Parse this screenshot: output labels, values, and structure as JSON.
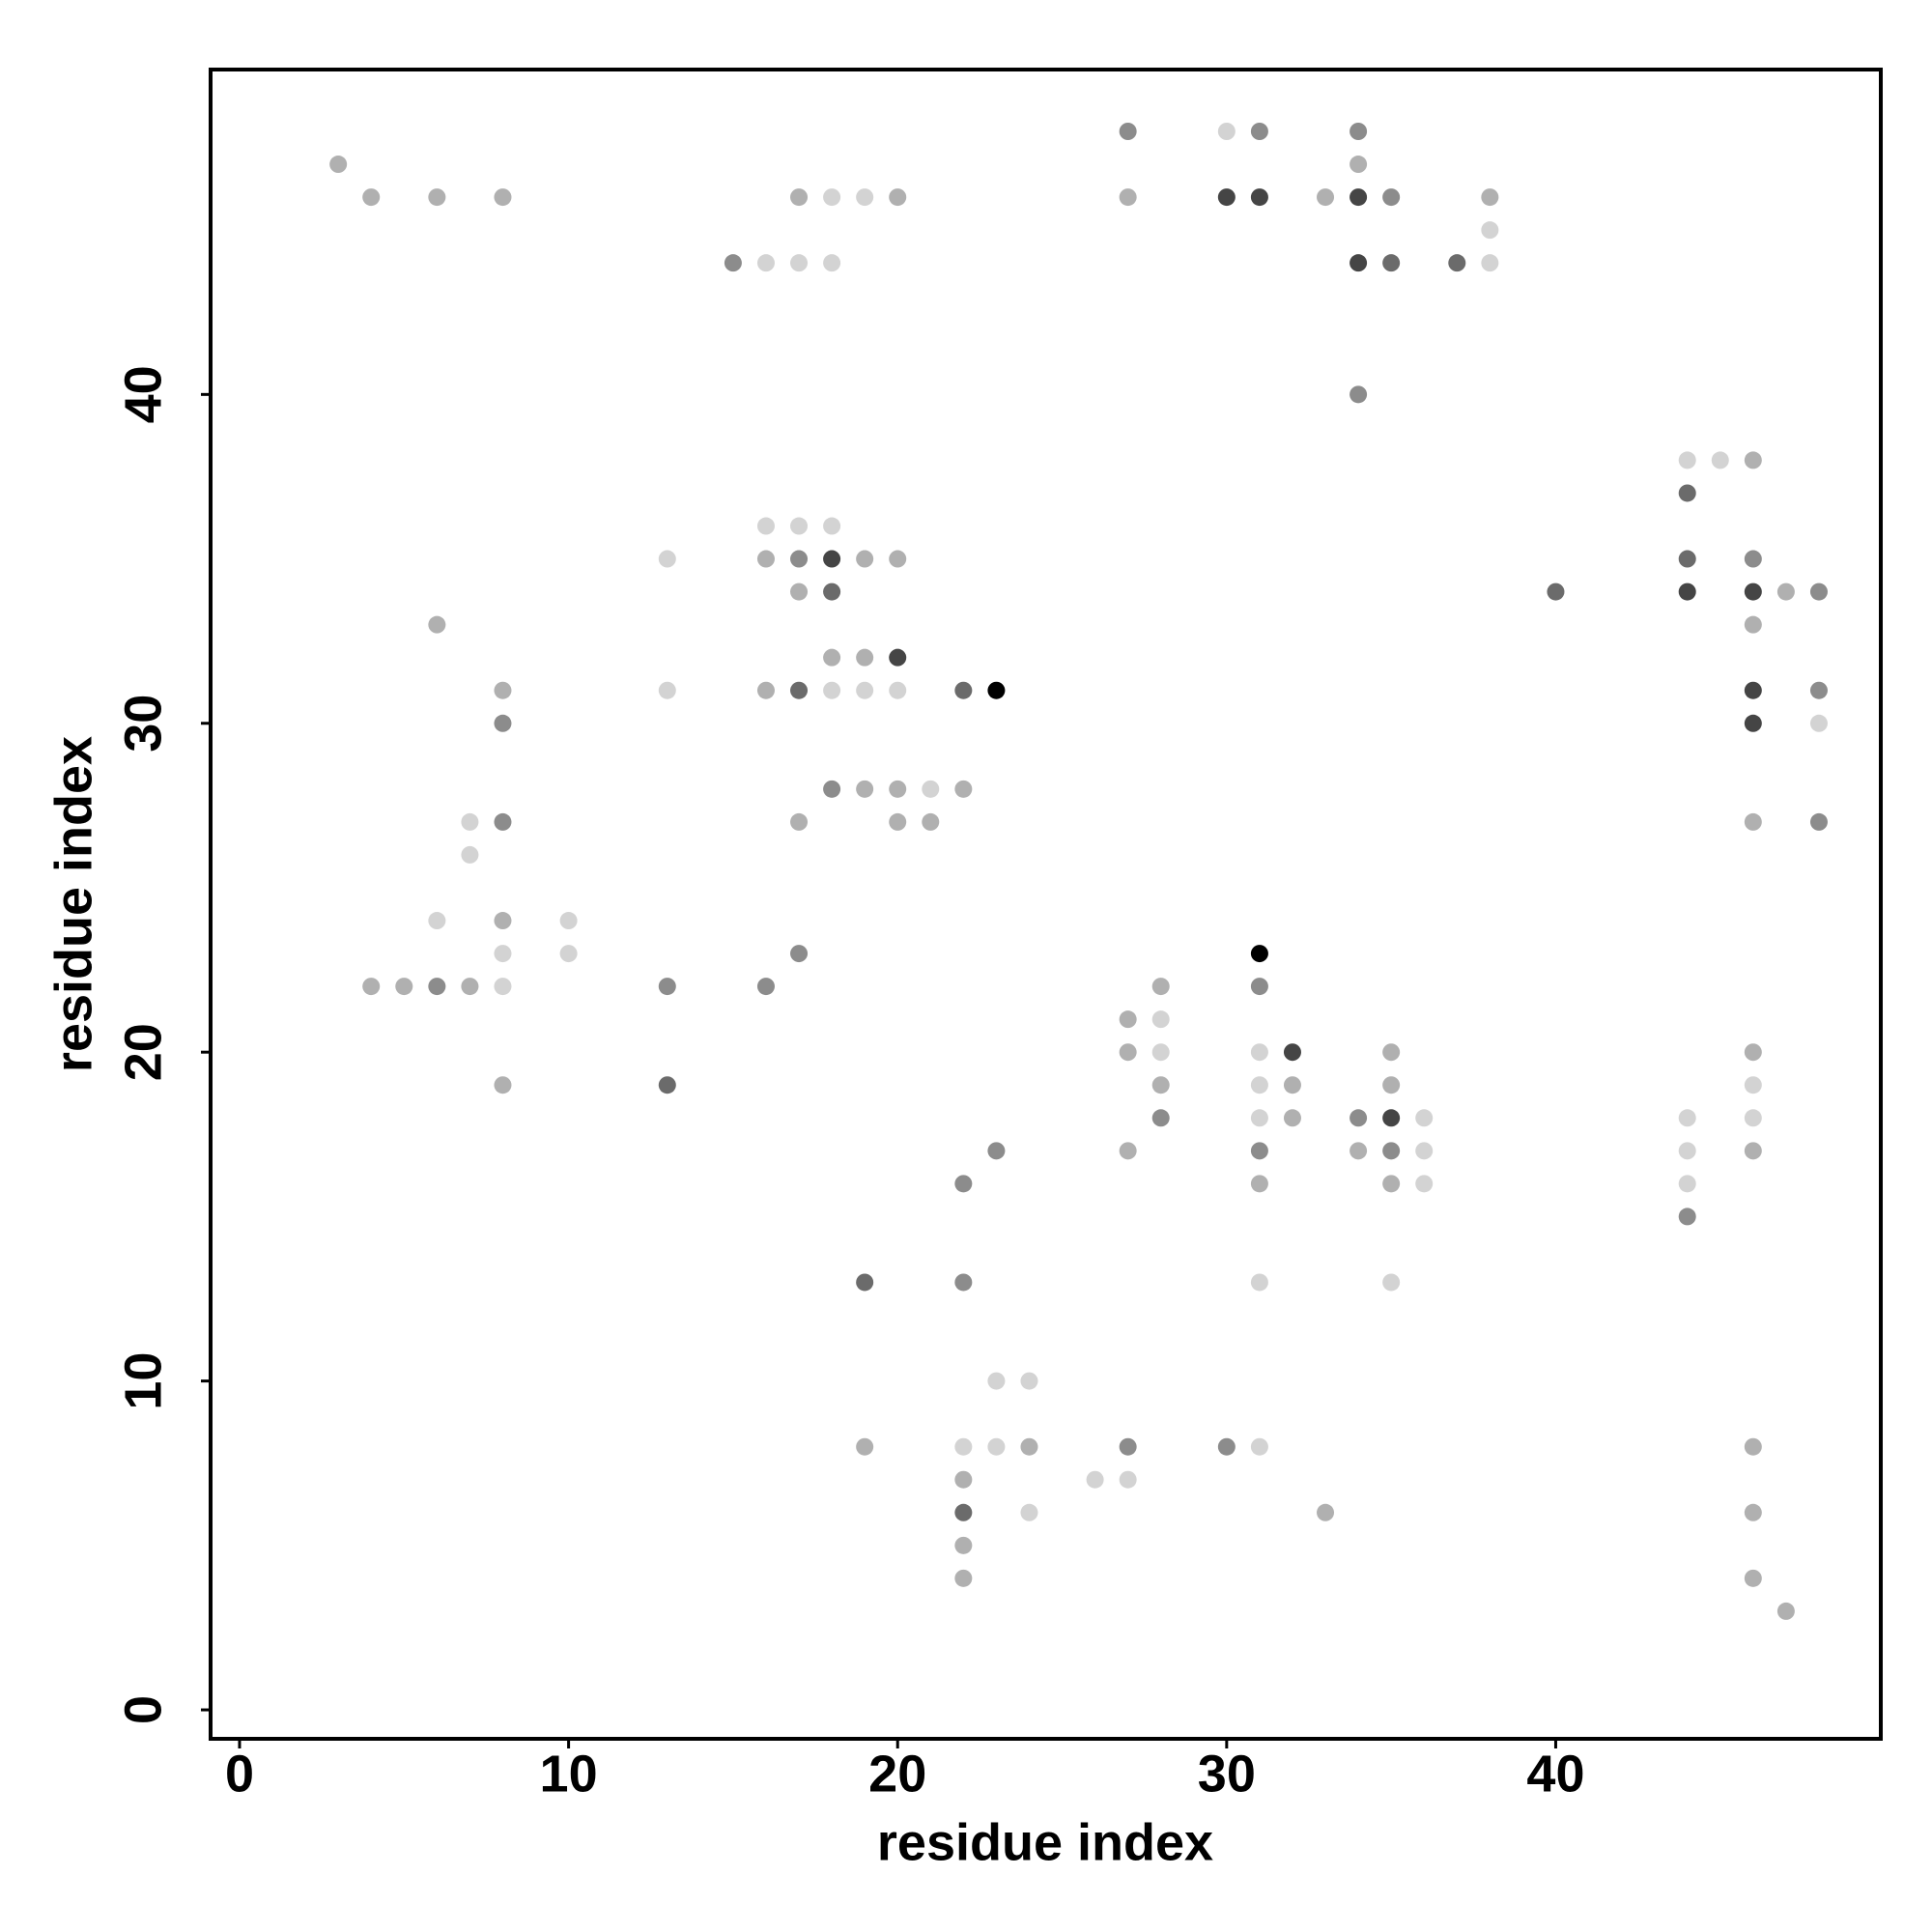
{
  "chart_data": {
    "type": "scatter",
    "xlabel": "residue index",
    "ylabel": "residue index",
    "xlim": [
      -0.88,
      49.88
    ],
    "ylim": [
      -0.88,
      49.88
    ],
    "xticks": [
      0,
      10,
      20,
      30,
      40
    ],
    "yticks": [
      0,
      10,
      20,
      30,
      40
    ],
    "x": [
      27,
      30,
      31,
      34,
      3,
      34,
      4,
      6,
      8,
      17,
      18,
      19,
      20,
      27,
      30,
      31,
      33,
      34,
      35,
      38,
      38,
      15,
      16,
      17,
      18,
      34,
      35,
      37,
      38,
      34,
      44,
      45,
      46,
      44,
      16,
      17,
      18,
      13,
      16,
      17,
      18,
      19,
      20,
      44,
      46,
      17,
      18,
      40,
      44,
      46,
      47,
      48,
      6,
      46,
      18,
      19,
      20,
      8,
      13,
      16,
      17,
      18,
      19,
      20,
      22,
      23,
      46,
      48,
      8,
      46,
      48,
      18,
      19,
      20,
      21,
      22,
      7,
      8,
      17,
      20,
      21,
      46,
      48,
      7,
      6,
      8,
      10,
      8,
      10,
      17,
      31,
      4,
      5,
      6,
      7,
      8,
      13,
      16,
      28,
      31,
      27,
      28,
      27,
      28,
      31,
      32,
      35,
      46,
      8,
      13,
      28,
      31,
      32,
      35,
      46,
      28,
      31,
      32,
      34,
      35,
      36,
      44,
      46,
      23,
      27,
      31,
      34,
      35,
      36,
      44,
      46,
      22,
      31,
      35,
      36,
      44,
      44,
      19,
      22,
      31,
      35,
      23,
      24,
      19,
      22,
      23,
      24,
      27,
      30,
      31,
      46,
      22,
      26,
      27,
      22,
      24,
      33,
      46,
      22,
      22,
      46,
      47
    ],
    "y": [
      48,
      48,
      48,
      48,
      47,
      47,
      46,
      46,
      46,
      46,
      46,
      46,
      46,
      46,
      46,
      46,
      46,
      46,
      46,
      46,
      45,
      44,
      44,
      44,
      44,
      44,
      44,
      44,
      44,
      40,
      38,
      38,
      38,
      37,
      36,
      36,
      36,
      35,
      35,
      35,
      35,
      35,
      35,
      35,
      35,
      34,
      34,
      34,
      34,
      34,
      34,
      34,
      33,
      33,
      32,
      32,
      32,
      31,
      31,
      31,
      31,
      31,
      31,
      31,
      31,
      31,
      31,
      31,
      30,
      30,
      30,
      28,
      28,
      28,
      28,
      28,
      27,
      27,
      27,
      27,
      27,
      27,
      27,
      26,
      24,
      24,
      24,
      23,
      23,
      23,
      23,
      22,
      22,
      22,
      22,
      22,
      22,
      22,
      22,
      22,
      21,
      21,
      20,
      20,
      20,
      20,
      20,
      20,
      19,
      19,
      19,
      19,
      19,
      19,
      19,
      18,
      18,
      18,
      18,
      18,
      18,
      18,
      18,
      17,
      17,
      17,
      17,
      17,
      17,
      17,
      17,
      16,
      16,
      16,
      16,
      16,
      15,
      13,
      13,
      13,
      13,
      10,
      10,
      8,
      8,
      8,
      8,
      8,
      8,
      8,
      8,
      7,
      7,
      7,
      6,
      6,
      6,
      6,
      5,
      4,
      4,
      3
    ],
    "colors": [
      "#8c8c8c",
      "#d3d3d3",
      "#8c8c8c",
      "#8c8c8c",
      "#b0b0b0",
      "#b0b0b0",
      "#b0b0b0",
      "#b0b0b0",
      "#b0b0b0",
      "#b0b0b0",
      "#d3d3d3",
      "#d3d3d3",
      "#b0b0b0",
      "#b0b0b0",
      "#454545",
      "#454545",
      "#b0b0b0",
      "#454545",
      "#8c8c8c",
      "#b0b0b0",
      "#d3d3d3",
      "#8c8c8c",
      "#d3d3d3",
      "#d3d3d3",
      "#d3d3d3",
      "#454545",
      "#6b6b6b",
      "#6b6b6b",
      "#d3d3d3",
      "#8c8c8c",
      "#d3d3d3",
      "#d3d3d3",
      "#b0b0b0",
      "#6b6b6b",
      "#d3d3d3",
      "#d3d3d3",
      "#d3d3d3",
      "#d3d3d3",
      "#b0b0b0",
      "#8c8c8c",
      "#454545",
      "#b0b0b0",
      "#b0b0b0",
      "#6b6b6b",
      "#8c8c8c",
      "#b0b0b0",
      "#6b6b6b",
      "#6b6b6b",
      "#454545",
      "#454545",
      "#b0b0b0",
      "#8c8c8c",
      "#b0b0b0",
      "#b0b0b0",
      "#b0b0b0",
      "#b0b0b0",
      "#454545",
      "#b0b0b0",
      "#d3d3d3",
      "#b0b0b0",
      "#6b6b6b",
      "#d3d3d3",
      "#d3d3d3",
      "#d3d3d3",
      "#6b6b6b",
      "#000000",
      "#454545",
      "#8c8c8c",
      "#8c8c8c",
      "#454545",
      "#d3d3d3",
      "#8c8c8c",
      "#b0b0b0",
      "#b0b0b0",
      "#d3d3d3",
      "#b0b0b0",
      "#d3d3d3",
      "#8c8c8c",
      "#b0b0b0",
      "#b0b0b0",
      "#b0b0b0",
      "#b0b0b0",
      "#8c8c8c",
      "#d3d3d3",
      "#d3d3d3",
      "#b0b0b0",
      "#d3d3d3",
      "#d3d3d3",
      "#d3d3d3",
      "#8c8c8c",
      "#000000",
      "#b0b0b0",
      "#b0b0b0",
      "#8c8c8c",
      "#b0b0b0",
      "#d3d3d3",
      "#8c8c8c",
      "#8c8c8c",
      "#b0b0b0",
      "#8c8c8c",
      "#b0b0b0",
      "#d3d3d3",
      "#b0b0b0",
      "#d3d3d3",
      "#d3d3d3",
      "#454545",
      "#b0b0b0",
      "#b0b0b0",
      "#b0b0b0",
      "#6b6b6b",
      "#b0b0b0",
      "#d3d3d3",
      "#b0b0b0",
      "#b0b0b0",
      "#d3d3d3",
      "#8c8c8c",
      "#d3d3d3",
      "#b0b0b0",
      "#8c8c8c",
      "#454545",
      "#d3d3d3",
      "#d3d3d3",
      "#d3d3d3",
      "#8c8c8c",
      "#b0b0b0",
      "#8c8c8c",
      "#b0b0b0",
      "#8c8c8c",
      "#d3d3d3",
      "#d3d3d3",
      "#b0b0b0",
      "#8c8c8c",
      "#b0b0b0",
      "#b0b0b0",
      "#d3d3d3",
      "#d3d3d3",
      "#8c8c8c",
      "#6b6b6b",
      "#8c8c8c",
      "#d3d3d3",
      "#d3d3d3",
      "#d3d3d3",
      "#d3d3d3",
      "#b0b0b0",
      "#d3d3d3",
      "#d3d3d3",
      "#b0b0b0",
      "#8c8c8c",
      "#8c8c8c",
      "#d3d3d3",
      "#b0b0b0",
      "#b0b0b0",
      "#d3d3d3",
      "#d3d3d3",
      "#6b6b6b",
      "#d3d3d3",
      "#b0b0b0",
      "#b0b0b0",
      "#b0b0b0",
      "#b0b0b0",
      "#b0b0b0",
      "#b0b0b0"
    ]
  }
}
